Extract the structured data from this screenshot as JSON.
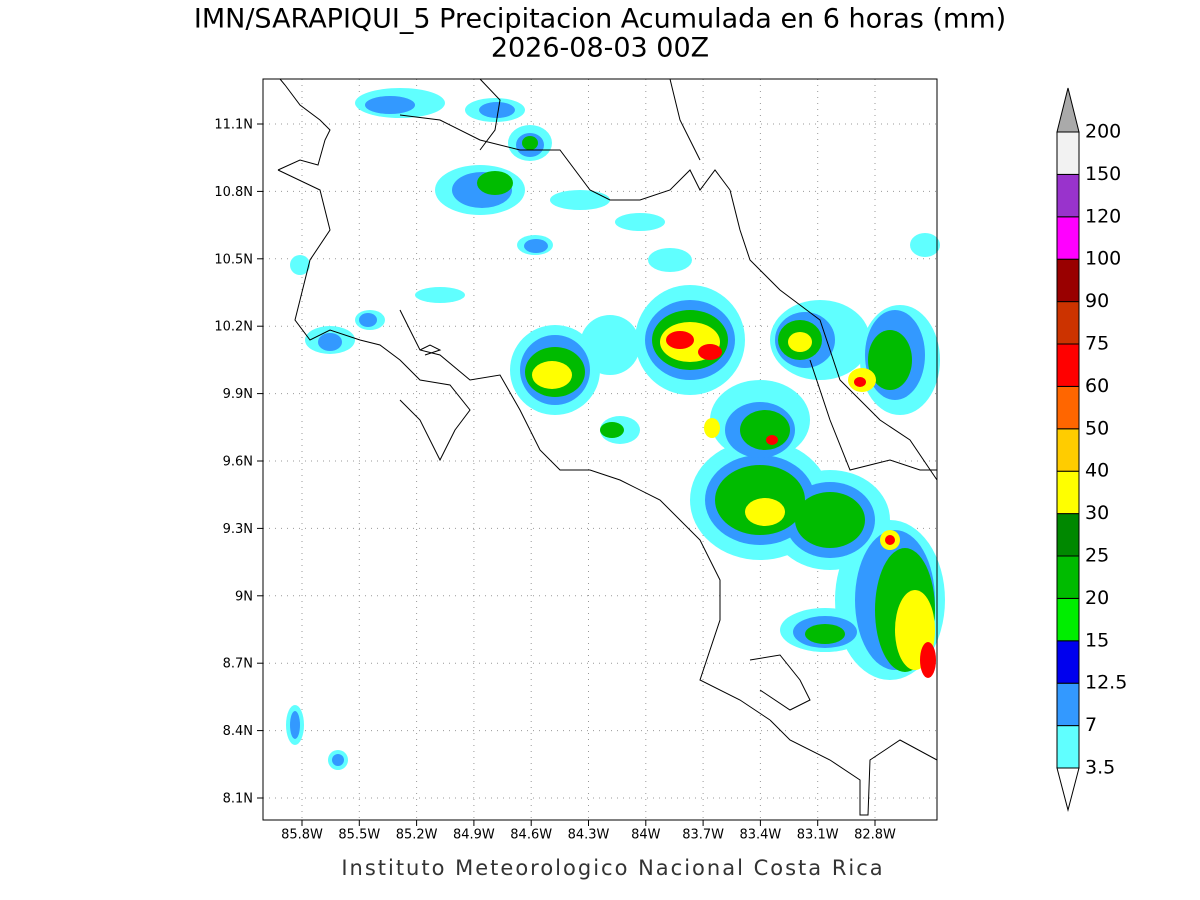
{
  "title": "IMN/SARAPIQUI_5 Precipitacion Acumulada en 6 horas (mm)",
  "subtitle": "2026-08-03 00Z",
  "lat_labels": [
    "11.1N",
    "10.8N",
    "10.5N",
    "10.2N",
    "9.9N",
    "9.6N",
    "9.3N",
    "9N",
    "8.7N",
    "8.4N",
    "8.1N"
  ],
  "lon_labels": [
    "85.8W",
    "85.5W",
    "85.2W",
    "84.9W",
    "84.6W",
    "84.3W",
    "84W",
    "83.7W",
    "83.4W",
    "83.1W",
    "82.8W"
  ],
  "colorbar": {
    "labels": [
      "3.5",
      "7",
      "12.5",
      "15",
      "20",
      "25",
      "30",
      "40",
      "50",
      "60",
      "75",
      "90",
      "100",
      "120",
      "150",
      "200"
    ],
    "colors": [
      "#60ffff",
      "#3399ff",
      "#0000ee",
      "#00ee00",
      "#00bb00",
      "#008800",
      "#ffff00",
      "#ffcc00",
      "#ff6600",
      "#ff0000",
      "#cc3300",
      "#990000",
      "#ff00ff",
      "#9933cc",
      "#f2f2f2"
    ],
    "under_color": "#ffffff",
    "over_color": "#aaaaaa"
  },
  "footer": "Instituto Meteorologico Nacional Costa Rica"
}
